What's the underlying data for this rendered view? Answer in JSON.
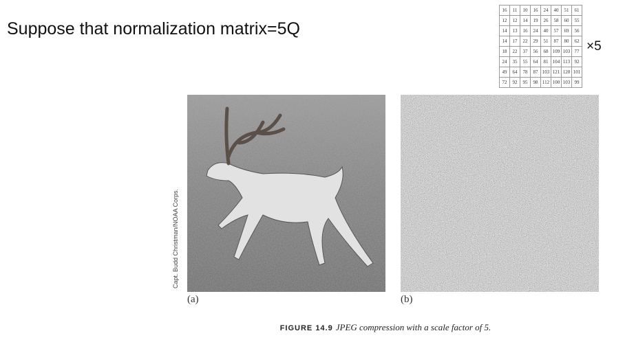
{
  "title": "Suppose that normalization matrix=5Q",
  "matrix": [
    [
      16,
      11,
      10,
      16,
      24,
      40,
      51,
      61
    ],
    [
      12,
      12,
      14,
      19,
      26,
      58,
      60,
      55
    ],
    [
      14,
      13,
      16,
      24,
      40,
      57,
      69,
      56
    ],
    [
      14,
      17,
      22,
      29,
      51,
      87,
      80,
      62
    ],
    [
      18,
      22,
      37,
      56,
      68,
      109,
      103,
      77
    ],
    [
      24,
      35,
      55,
      64,
      81,
      104,
      113,
      92
    ],
    [
      49,
      64,
      78,
      87,
      103,
      121,
      120,
      101
    ],
    [
      72,
      92,
      95,
      98,
      112,
      100,
      103,
      99
    ]
  ],
  "multiplier": "×5",
  "figure": {
    "label_a": "(a)",
    "label_b": "(b)",
    "credit": "Capt. Budd Christman/NOAA Corps.",
    "caption_number": "FIGURE 14.9",
    "caption_text": "JPEG compression with a scale factor of 5."
  }
}
